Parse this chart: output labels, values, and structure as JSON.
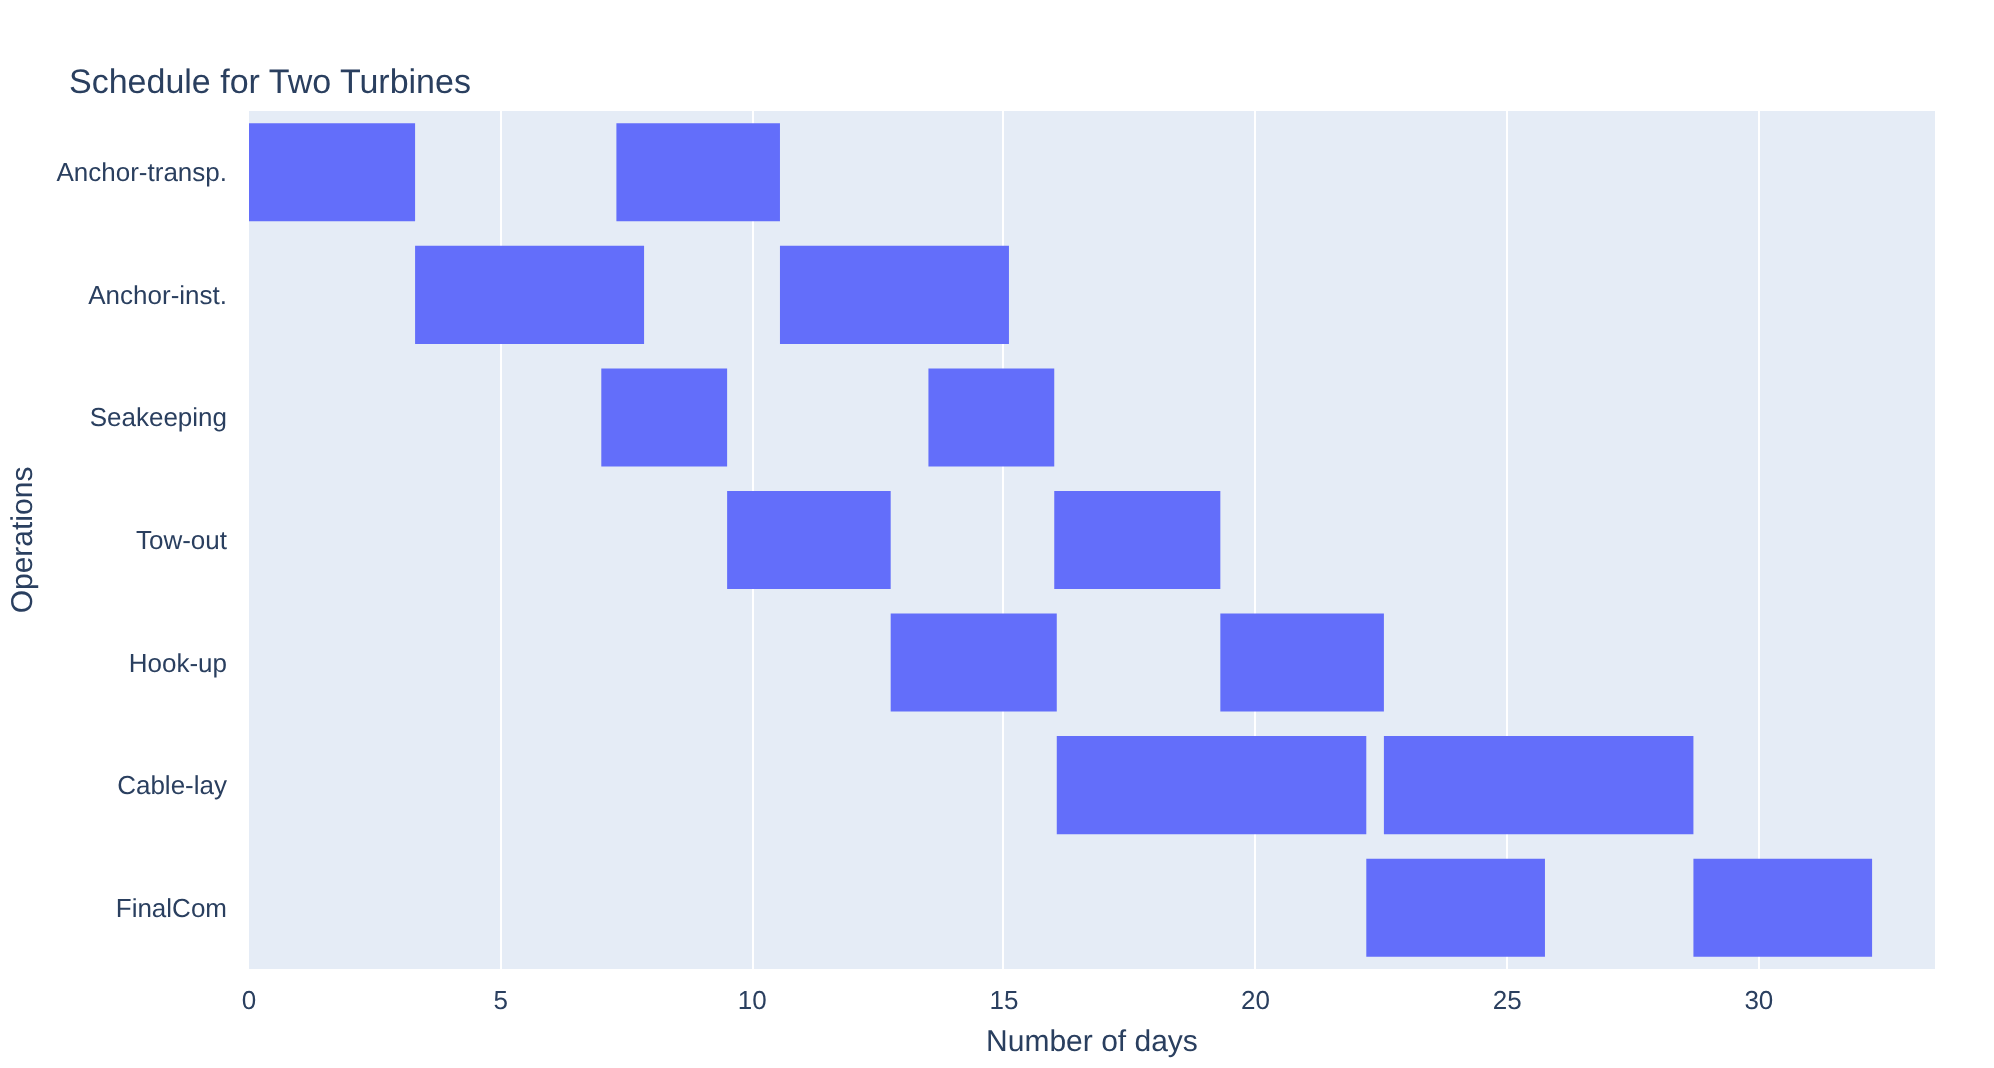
{
  "chart_data": {
    "type": "bar",
    "orientation": "horizontal",
    "title": "Schedule for Two Turbines",
    "xlabel": "Number of days",
    "ylabel": "Operations",
    "categories": [
      "Anchor-transp.",
      "Anchor-inst.",
      "Seakeeping",
      "Tow-out",
      "Hook-up",
      "Cable-lay",
      "FinalCom"
    ],
    "series": [
      {
        "color": "#636efa",
        "base": [
          0,
          3.3,
          7.0,
          9.5,
          12.75,
          16.05,
          22.2
        ],
        "values": [
          3.3,
          4.55,
          2.5,
          3.25,
          3.3,
          6.15,
          3.55
        ]
      },
      {
        "color": "#636efa",
        "base": [
          7.3,
          10.55,
          13.5,
          16.0,
          19.3,
          22.55,
          28.7
        ],
        "values": [
          3.25,
          4.55,
          2.5,
          3.3,
          3.25,
          6.15,
          3.55
        ]
      }
    ],
    "xlim": [
      0,
      33.5
    ],
    "xticks": [
      0,
      5,
      10,
      15,
      20,
      25,
      30
    ],
    "grid": "x"
  }
}
